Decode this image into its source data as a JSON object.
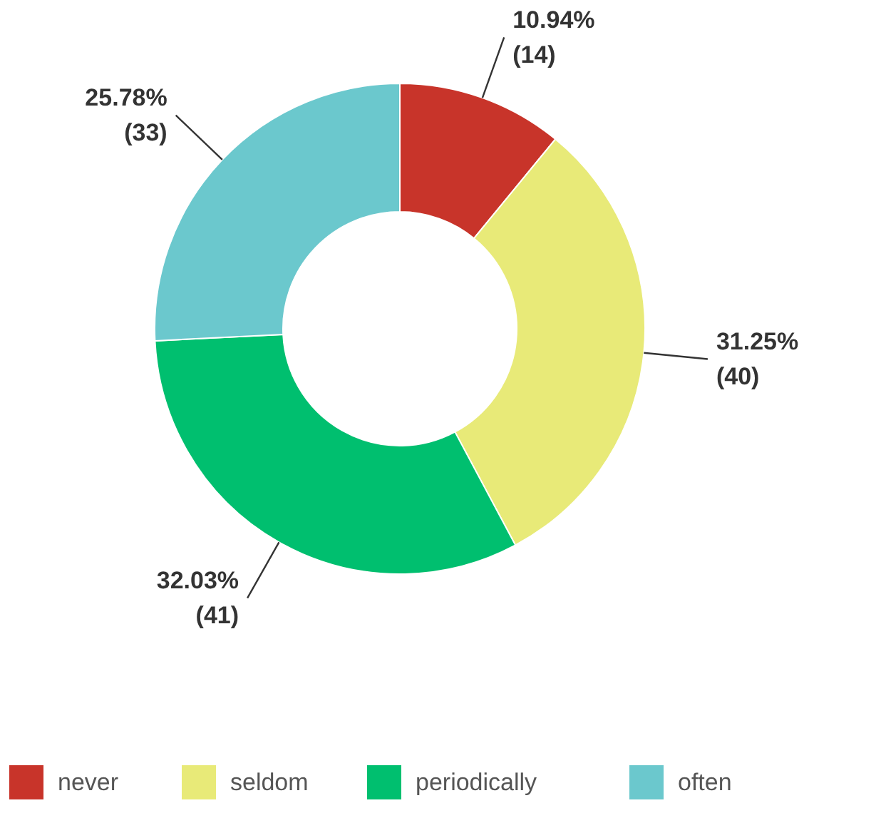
{
  "chart_data": {
    "type": "donut",
    "categories": [
      "never",
      "seldom",
      "periodically",
      "often"
    ],
    "values": [
      14,
      40,
      41,
      33
    ],
    "colors": [
      "#c8342a",
      "#e8ea78",
      "#00bf6f",
      "#6bc8cd"
    ],
    "value_labels": [
      "10.94%\n(14)",
      "31.25%\n(40)",
      "32.03%\n(41)",
      "25.78%\n(33)"
    ],
    "legend": "bottom"
  }
}
